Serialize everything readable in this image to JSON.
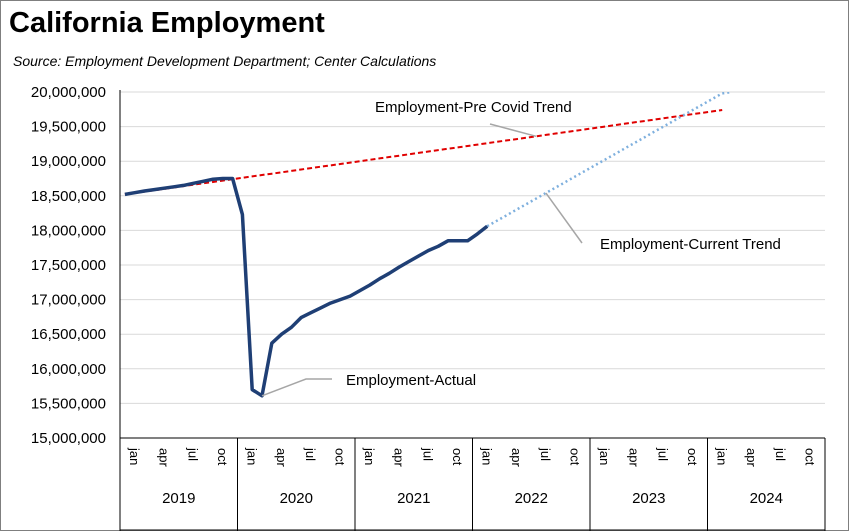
{
  "chart_data": {
    "type": "line",
    "title": "California Employment",
    "subtitle": "Source:  Employment Development Department; Center Calculations",
    "ylim": [
      15000000,
      20000000
    ],
    "yticks": [
      15000000,
      15500000,
      16000000,
      16500000,
      17000000,
      17500000,
      18000000,
      18500000,
      19000000,
      19500000,
      20000000
    ],
    "month_labels": [
      "jan",
      "apr",
      "jul",
      "oct"
    ],
    "years": [
      "2019",
      "2020",
      "2021",
      "2022",
      "2023",
      "2024"
    ],
    "series": [
      {
        "name": "Employment-Actual",
        "color": "#1f3f75",
        "style": "solid",
        "start_month": 0,
        "values": [
          18520000,
          18545000,
          18570000,
          18590000,
          18610000,
          18630000,
          18650000,
          18680000,
          18710000,
          18740000,
          18750000,
          18750000,
          18230000,
          15700000,
          15610000,
          16370000,
          16500000,
          16600000,
          16740000,
          16810000,
          16880000,
          16950000,
          17000000,
          17050000,
          17130000,
          17210000,
          17300000,
          17380000,
          17470000,
          17550000,
          17630000,
          17710000,
          17770000,
          17850000,
          17850000,
          17850000,
          17950000,
          18060000
        ]
      },
      {
        "name": "Employment-Pre Covid Trend",
        "color": "#e00000",
        "style": "dashed",
        "start_month": 0,
        "values": [
          18520000,
          18540000,
          18560000,
          18580000,
          18600000,
          18620000,
          18640000,
          18660000,
          18680000,
          18700000,
          18720000,
          18740000,
          18760000,
          18780000,
          18800000,
          18820000,
          18840000,
          18860000,
          18880000,
          18900000,
          18920000,
          18940000,
          18960000,
          18980000,
          19000000,
          19020000,
          19040000,
          19060000,
          19080000,
          19100000,
          19120000,
          19140000,
          19160000,
          19180000,
          19200000,
          19220000,
          19240000,
          19260000,
          19280000,
          19300000,
          19320000,
          19340000,
          19360000,
          19380000,
          19400000,
          19420000,
          19440000,
          19460000,
          19480000,
          19500000,
          19520000,
          19540000,
          19560000,
          19580000,
          19600000,
          19620000,
          19640000,
          19660000,
          19680000,
          19700000,
          19720000,
          19740000
        ]
      },
      {
        "name": "Employment-Current Trend",
        "color": "#7fb0de",
        "style": "dotted",
        "start_month": 37,
        "values": [
          18060000,
          18140000,
          18220000,
          18300000,
          18380000,
          18460000,
          18540000,
          18620000,
          18700000,
          18780000,
          18860000,
          18940000,
          19020000,
          19100000,
          19180000,
          19260000,
          19340000,
          19420000,
          19500000,
          19580000,
          19660000,
          19740000,
          19820000,
          19900000,
          19980000,
          20000000
        ]
      }
    ],
    "annotations": [
      {
        "text": "Employment-Pre Covid Trend",
        "series": 1
      },
      {
        "text": "Employment-Current Trend",
        "series": 2
      },
      {
        "text": "Employment-Actual",
        "series": 0
      }
    ]
  }
}
